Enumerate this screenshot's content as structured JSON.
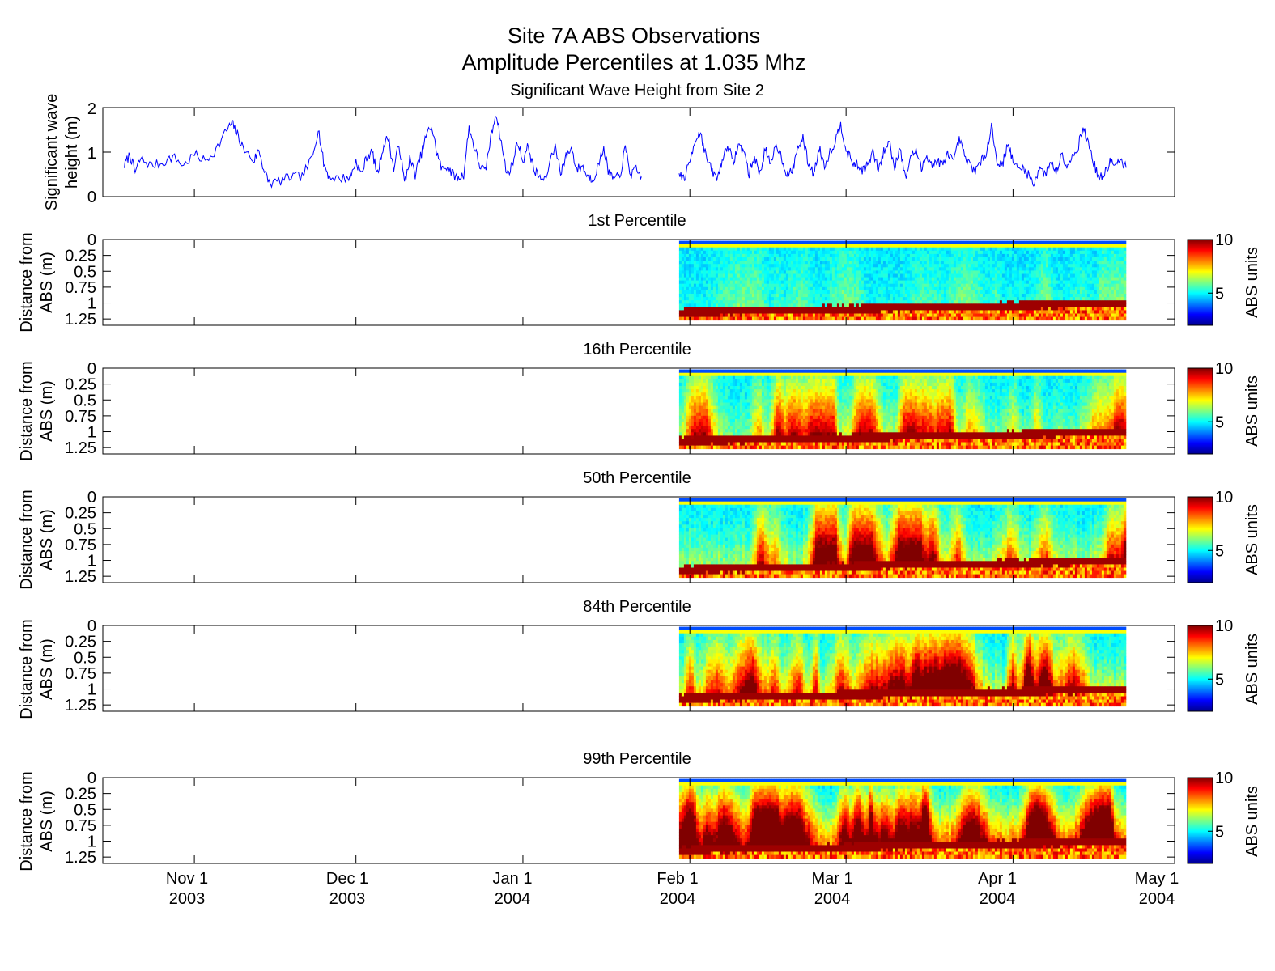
{
  "figure": {
    "title": "Site 7A ABS Observations",
    "subtitle": "Amplitude Percentiles at 1.035 Mhz"
  },
  "date_ticks": [
    {
      "label": "Nov 1",
      "year": "2003",
      "date": "2003-11-01"
    },
    {
      "label": "Dec 1",
      "year": "2003",
      "date": "2003-12-01"
    },
    {
      "label": "Jan 1",
      "year": "2004",
      "date": "2004-01-01"
    },
    {
      "label": "Feb 1",
      "year": "2004",
      "date": "2004-02-01"
    },
    {
      "label": "Mar 1",
      "year": "2004",
      "date": "2004-03-01"
    },
    {
      "label": "Apr 1",
      "year": "2004",
      "date": "2004-04-01"
    },
    {
      "label": "May 1",
      "year": "2004",
      "date": "2004-05-01"
    }
  ],
  "chart_data": [
    {
      "type": "line",
      "title": "Significant Wave Height from Site 2",
      "xlabel": "",
      "ylabel_line1": "Significant wave",
      "ylabel_line2": "height (m)",
      "xlim": [
        "2003-10-15",
        "2004-05-01"
      ],
      "ylim": [
        0,
        2
      ],
      "yticks": [
        "0",
        "1",
        "2"
      ],
      "color": "#0000ff",
      "series": [
        {
          "segments": [
            {
              "start": "2003-10-19",
              "end": "2004-01-23",
              "points": [
                [
                  "2003-10-19",
                  0.7
                ],
                [
                  "2003-10-20",
                  0.95
                ],
                [
                  "2003-10-21",
                  0.55
                ],
                [
                  "2003-10-22",
                  0.85
                ],
                [
                  "2003-10-24",
                  0.7
                ],
                [
                  "2003-10-26",
                  0.75
                ],
                [
                  "2003-10-28",
                  0.9
                ],
                [
                  "2003-10-30",
                  0.7
                ],
                [
                  "2003-11-01",
                  0.95
                ],
                [
                  "2003-11-03",
                  0.8
                ],
                [
                  "2003-11-05",
                  1.05
                ],
                [
                  "2003-11-07",
                  1.5
                ],
                [
                  "2003-11-08",
                  1.65
                ],
                [
                  "2003-11-09",
                  1.4
                ],
                [
                  "2003-11-10",
                  1.1
                ],
                [
                  "2003-11-12",
                  0.8
                ],
                [
                  "2003-11-13",
                  1.05
                ],
                [
                  "2003-11-14",
                  0.55
                ],
                [
                  "2003-11-15",
                  0.3
                ],
                [
                  "2003-11-17",
                  0.35
                ],
                [
                  "2003-11-19",
                  0.45
                ],
                [
                  "2003-11-21",
                  0.45
                ],
                [
                  "2003-11-23",
                  0.9
                ],
                [
                  "2003-11-24",
                  1.55
                ],
                [
                  "2003-11-25",
                  0.75
                ],
                [
                  "2003-11-26",
                  0.45
                ],
                [
                  "2003-11-28",
                  0.4
                ],
                [
                  "2003-11-30",
                  0.45
                ],
                [
                  "2003-12-01",
                  0.8
                ],
                [
                  "2003-12-02",
                  0.5
                ],
                [
                  "2003-12-03",
                  0.9
                ],
                [
                  "2003-12-04",
                  1.0
                ],
                [
                  "2003-12-05",
                  0.5
                ],
                [
                  "2003-12-06",
                  1.1
                ],
                [
                  "2003-12-07",
                  1.35
                ],
                [
                  "2003-12-08",
                  0.6
                ],
                [
                  "2003-12-09",
                  1.2
                ],
                [
                  "2003-12-10",
                  0.3
                ],
                [
                  "2003-12-11",
                  0.85
                ],
                [
                  "2003-12-12",
                  0.5
                ],
                [
                  "2003-12-13",
                  0.9
                ],
                [
                  "2003-12-14",
                  1.35
                ],
                [
                  "2003-12-15",
                  1.6
                ],
                [
                  "2003-12-16",
                  1.0
                ],
                [
                  "2003-12-17",
                  0.6
                ],
                [
                  "2003-12-18",
                  0.7
                ],
                [
                  "2003-12-19",
                  0.5
                ],
                [
                  "2003-12-20",
                  0.4
                ],
                [
                  "2003-12-21",
                  0.5
                ],
                [
                  "2003-12-22",
                  1.55
                ],
                [
                  "2003-12-23",
                  1.1
                ],
                [
                  "2003-12-24",
                  0.7
                ],
                [
                  "2003-12-25",
                  0.55
                ],
                [
                  "2003-12-26",
                  1.3
                ],
                [
                  "2003-12-27",
                  1.9
                ],
                [
                  "2003-12-28",
                  1.2
                ],
                [
                  "2003-12-29",
                  0.5
                ],
                [
                  "2003-12-30",
                  0.7
                ],
                [
                  "2003-12-31",
                  1.25
                ],
                [
                  "2004-01-01",
                  0.8
                ],
                [
                  "2004-01-02",
                  1.15
                ],
                [
                  "2004-01-03",
                  0.6
                ],
                [
                  "2004-01-04",
                  0.45
                ],
                [
                  "2004-01-05",
                  0.35
                ],
                [
                  "2004-01-07",
                  1.15
                ],
                [
                  "2004-01-08",
                  0.55
                ],
                [
                  "2004-01-09",
                  0.9
                ],
                [
                  "2004-01-10",
                  1.1
                ],
                [
                  "2004-01-11",
                  0.6
                ],
                [
                  "2004-01-12",
                  0.7
                ],
                [
                  "2004-01-13",
                  0.45
                ],
                [
                  "2004-01-14",
                  0.4
                ],
                [
                  "2004-01-15",
                  0.7
                ],
                [
                  "2004-01-16",
                  1.1
                ],
                [
                  "2004-01-17",
                  0.5
                ],
                [
                  "2004-01-18",
                  0.4
                ],
                [
                  "2004-01-19",
                  0.45
                ],
                [
                  "2004-01-20",
                  1.1
                ],
                [
                  "2004-01-21",
                  0.5
                ],
                [
                  "2004-01-22",
                  0.6
                ],
                [
                  "2004-01-23",
                  0.45
                ]
              ]
            },
            {
              "start": "2004-01-30",
              "end": "2004-04-22",
              "points": [
                [
                  "2004-01-30",
                  0.5
                ],
                [
                  "2004-01-31",
                  0.4
                ],
                [
                  "2004-02-01",
                  0.8
                ],
                [
                  "2004-02-02",
                  1.3
                ],
                [
                  "2004-02-03",
                  1.45
                ],
                [
                  "2004-02-04",
                  0.9
                ],
                [
                  "2004-02-05",
                  0.6
                ],
                [
                  "2004-02-06",
                  0.4
                ],
                [
                  "2004-02-07",
                  0.8
                ],
                [
                  "2004-02-08",
                  1.2
                ],
                [
                  "2004-02-09",
                  0.75
                ],
                [
                  "2004-02-10",
                  1.15
                ],
                [
                  "2004-02-11",
                  1.05
                ],
                [
                  "2004-02-12",
                  0.5
                ],
                [
                  "2004-02-13",
                  0.9
                ],
                [
                  "2004-02-14",
                  0.5
                ],
                [
                  "2004-02-15",
                  1.1
                ],
                [
                  "2004-02-16",
                  0.65
                ],
                [
                  "2004-02-17",
                  1.2
                ],
                [
                  "2004-02-18",
                  0.9
                ],
                [
                  "2004-02-19",
                  0.5
                ],
                [
                  "2004-02-20",
                  0.55
                ],
                [
                  "2004-02-21",
                  1.1
                ],
                [
                  "2004-02-22",
                  1.3
                ],
                [
                  "2004-02-23",
                  0.75
                ],
                [
                  "2004-02-24",
                  0.5
                ],
                [
                  "2004-02-25",
                  1.1
                ],
                [
                  "2004-02-26",
                  0.7
                ],
                [
                  "2004-02-27",
                  1.0
                ],
                [
                  "2004-02-28",
                  1.25
                ],
                [
                  "2004-02-29",
                  1.65
                ],
                [
                  "2004-03-01",
                  1.05
                ],
                [
                  "2004-03-02",
                  0.8
                ],
                [
                  "2004-03-03",
                  0.7
                ],
                [
                  "2004-03-04",
                  0.6
                ],
                [
                  "2004-03-05",
                  0.7
                ],
                [
                  "2004-03-06",
                  1.0
                ],
                [
                  "2004-03-07",
                  0.6
                ],
                [
                  "2004-03-08",
                  1.0
                ],
                [
                  "2004-03-09",
                  1.25
                ],
                [
                  "2004-03-10",
                  0.65
                ],
                [
                  "2004-03-11",
                  1.15
                ],
                [
                  "2004-03-12",
                  0.4
                ],
                [
                  "2004-03-13",
                  0.9
                ],
                [
                  "2004-03-14",
                  1.05
                ],
                [
                  "2004-03-15",
                  0.6
                ],
                [
                  "2004-03-16",
                  0.95
                ],
                [
                  "2004-03-17",
                  0.7
                ],
                [
                  "2004-03-18",
                  0.8
                ],
                [
                  "2004-03-19",
                  0.7
                ],
                [
                  "2004-03-20",
                  1.0
                ],
                [
                  "2004-03-21",
                  0.75
                ],
                [
                  "2004-03-22",
                  1.3
                ],
                [
                  "2004-03-23",
                  0.9
                ],
                [
                  "2004-03-24",
                  0.7
                ],
                [
                  "2004-03-25",
                  0.6
                ],
                [
                  "2004-03-26",
                  0.75
                ],
                [
                  "2004-03-27",
                  1.0
                ],
                [
                  "2004-03-28",
                  1.6
                ],
                [
                  "2004-03-29",
                  0.8
                ],
                [
                  "2004-03-30",
                  0.7
                ],
                [
                  "2004-03-31",
                  1.2
                ],
                [
                  "2004-04-01",
                  0.8
                ],
                [
                  "2004-04-02",
                  0.6
                ],
                [
                  "2004-04-03",
                  0.65
                ],
                [
                  "2004-04-04",
                  0.45
                ],
                [
                  "2004-04-05",
                  0.3
                ],
                [
                  "2004-04-06",
                  0.7
                ],
                [
                  "2004-04-07",
                  0.45
                ],
                [
                  "2004-04-08",
                  0.85
                ],
                [
                  "2004-04-09",
                  0.5
                ],
                [
                  "2004-04-10",
                  1.0
                ],
                [
                  "2004-04-11",
                  0.7
                ],
                [
                  "2004-04-12",
                  0.9
                ],
                [
                  "2004-04-13",
                  1.1
                ],
                [
                  "2004-04-14",
                  1.55
                ],
                [
                  "2004-04-15",
                  1.2
                ],
                [
                  "2004-04-16",
                  0.75
                ],
                [
                  "2004-04-17",
                  0.4
                ],
                [
                  "2004-04-18",
                  0.5
                ],
                [
                  "2004-04-19",
                  0.8
                ],
                [
                  "2004-04-20",
                  0.7
                ],
                [
                  "2004-04-21",
                  0.8
                ],
                [
                  "2004-04-22",
                  0.65
                ]
              ]
            }
          ]
        }
      ]
    },
    {
      "type": "heatmap",
      "title": "1st Percentile",
      "percentile": 1,
      "ylabel_line1": "Distance from",
      "ylabel_line2": "ABS (m)",
      "ylim": [
        0,
        1.35
      ],
      "yreversed": true,
      "yticks": [
        "0",
        "0.25",
        "0.5",
        "0.75",
        "1",
        "1.25"
      ],
      "data_start": "2004-01-30",
      "data_end": "2004-04-22",
      "bottom_depth_range": [
        1.12,
        0.98
      ],
      "colorbar": {
        "label": "ABS units",
        "min": 2,
        "max": 10,
        "ticks": [
          "5",
          "10"
        ]
      }
    },
    {
      "type": "heatmap",
      "title": "16th Percentile",
      "percentile": 16,
      "ylabel_line1": "Distance from",
      "ylabel_line2": "ABS (m)",
      "ylim": [
        0,
        1.35
      ],
      "yreversed": true,
      "yticks": [
        "0",
        "0.25",
        "0.5",
        "0.75",
        "1",
        "1.25"
      ],
      "data_start": "2004-01-30",
      "data_end": "2004-04-22",
      "bottom_depth_range": [
        1.12,
        0.98
      ],
      "colorbar": {
        "label": "ABS units",
        "min": 2,
        "max": 10,
        "ticks": [
          "5",
          "10"
        ]
      }
    },
    {
      "type": "heatmap",
      "title": "50th Percentile",
      "percentile": 50,
      "ylabel_line1": "Distance from",
      "ylabel_line2": "ABS (m)",
      "ylim": [
        0,
        1.35
      ],
      "yreversed": true,
      "yticks": [
        "0",
        "0.25",
        "0.5",
        "0.75",
        "1",
        "1.25"
      ],
      "data_start": "2004-01-30",
      "data_end": "2004-04-22",
      "bottom_depth_range": [
        1.12,
        0.98
      ],
      "colorbar": {
        "label": "ABS units",
        "min": 2,
        "max": 10,
        "ticks": [
          "5",
          "10"
        ]
      }
    },
    {
      "type": "heatmap",
      "title": "84th Percentile",
      "percentile": 84,
      "ylabel_line1": "Distance from",
      "ylabel_line2": "ABS (m)",
      "ylim": [
        0,
        1.35
      ],
      "yreversed": true,
      "yticks": [
        "0",
        "0.25",
        "0.5",
        "0.75",
        "1",
        "1.25"
      ],
      "data_start": "2004-01-30",
      "data_end": "2004-04-22",
      "bottom_depth_range": [
        1.12,
        0.98
      ],
      "colorbar": {
        "label": "ABS units",
        "min": 2,
        "max": 10,
        "ticks": [
          "5",
          "10"
        ]
      }
    },
    {
      "type": "heatmap",
      "title": "99th Percentile",
      "percentile": 99,
      "ylabel_line1": "Distance from",
      "ylabel_line2": "ABS (m)",
      "ylim": [
        0,
        1.35
      ],
      "yreversed": true,
      "yticks": [
        "0",
        "0.25",
        "0.5",
        "0.75",
        "1",
        "1.25"
      ],
      "data_start": "2004-01-30",
      "data_end": "2004-04-22",
      "bottom_depth_range": [
        1.12,
        0.98
      ],
      "colorbar": {
        "label": "ABS units",
        "min": 2,
        "max": 10,
        "ticks": [
          "5",
          "10"
        ]
      }
    }
  ]
}
